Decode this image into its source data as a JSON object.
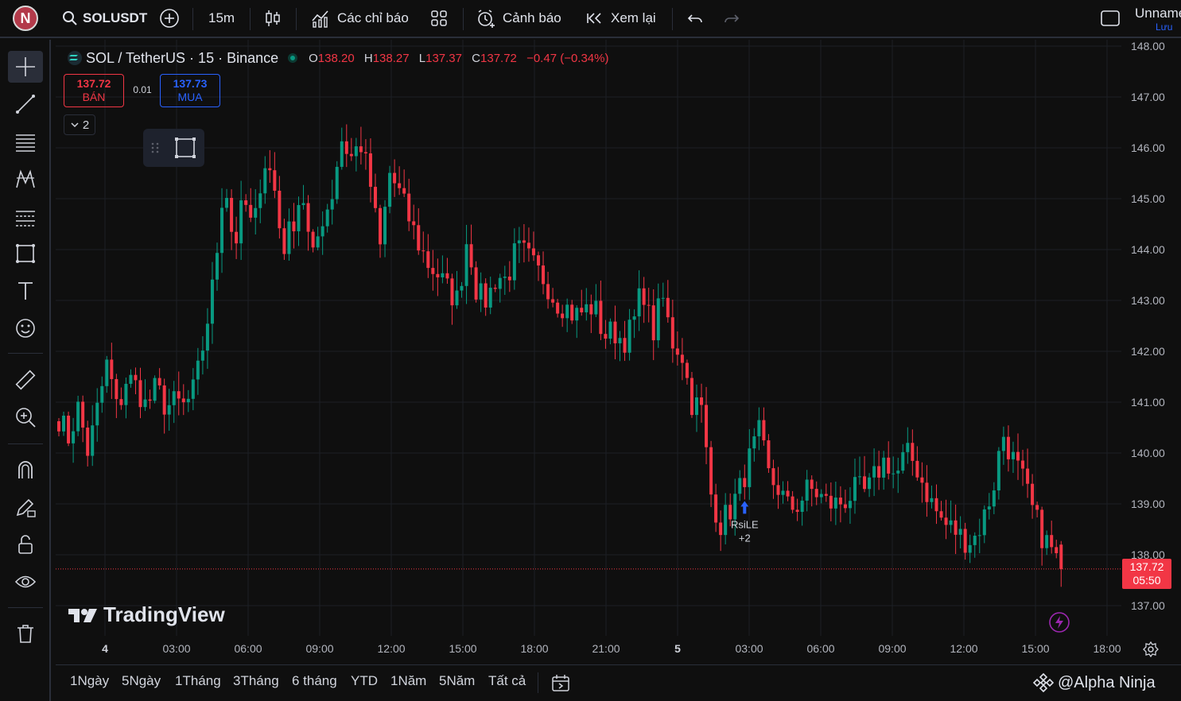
{
  "topbar": {
    "avatar": "N",
    "symbol": "SOLUSDT",
    "interval": "15m",
    "indicators": "Các chỉ báo",
    "alerts": "Cảnh báo",
    "replay": "Xem lại",
    "layout_name": "Unnamed",
    "save": "Lưu"
  },
  "legend": {
    "title": "SOL / TetherUS · 15 · Binance",
    "o_label": "O",
    "o": "138.20",
    "h_label": "H",
    "h": "138.27",
    "l_label": "L",
    "l": "137.37",
    "c_label": "C",
    "c": "137.72",
    "change": "−0.47 (−0.34%)",
    "sell_price": "137.72",
    "sell_label": "BÁN",
    "spread": "0.01",
    "buy_price": "137.73",
    "buy_label": "MUA",
    "collapsed_count": "2"
  },
  "chart_data": {
    "type": "candlestick",
    "symbol": "SOL / TetherUS",
    "interval": "15",
    "exchange": "Binance",
    "ylim": [
      136.6,
      148.2
    ],
    "y_ticks": [
      "148.00",
      "147.00",
      "146.00",
      "145.00",
      "144.00",
      "143.00",
      "142.00",
      "141.00",
      "140.00",
      "139.00",
      "138.00",
      "137.00"
    ],
    "x_ticks": [
      "4",
      "03:00",
      "06:00",
      "09:00",
      "12:00",
      "15:00",
      "18:00",
      "21:00",
      "5",
      "03:00",
      "06:00",
      "09:00",
      "12:00",
      "15:00",
      "18:00"
    ],
    "current_price": "137.72",
    "countdown": "05:50",
    "strategy_marker": {
      "label": "RsiLE",
      "extra": "+2",
      "price": 138.9
    },
    "close_path": [
      140.7,
      140.3,
      140.9,
      140.0,
      140.9,
      141.8,
      140.8,
      141.5,
      141.3,
      140.9,
      141.3,
      140.9,
      141.0,
      140.9,
      141.3,
      142.3,
      143.5,
      145.5,
      144.0,
      145.0,
      144.3,
      145.8,
      145.4,
      144.0,
      144.5,
      145.2,
      143.7,
      144.6,
      145.0,
      146.2,
      145.8,
      146.1,
      145.3,
      144.0,
      145.5,
      145.1,
      144.6,
      144.1,
      143.7,
      143.5,
      143.2,
      143.0,
      144.3,
      143.1,
      143.0,
      143.5,
      143.4,
      144.0,
      143.9,
      143.6,
      143.4,
      143.0,
      142.9,
      142.7,
      142.8,
      142.9,
      142.3,
      142.4,
      142.2,
      142.5,
      143.3,
      142.3,
      143.1,
      142.2,
      142.0,
      141.0,
      140.9,
      139.2,
      138.6,
      138.9,
      139.3,
      139.9,
      140.4,
      139.5,
      139.3,
      138.9,
      139.0,
      139.3,
      139.2,
      139.0,
      139.0,
      139.1,
      139.3,
      139.2,
      139.6,
      139.9,
      139.5,
      140.0,
      139.8,
      139.3,
      138.9,
      138.6,
      138.5,
      138.3,
      138.3,
      138.7,
      139.3,
      140.4,
      139.9,
      139.5,
      138.9,
      138.4,
      138.1,
      137.72
    ]
  },
  "watermark": "TradingView",
  "bottom": {
    "ranges": [
      "1Ngày",
      "5Ngày",
      "1Tháng",
      "3Tháng",
      "6 tháng",
      "YTD",
      "1Năm",
      "5Năm",
      "Tất cả"
    ],
    "credit": "@Alpha Ninja"
  }
}
